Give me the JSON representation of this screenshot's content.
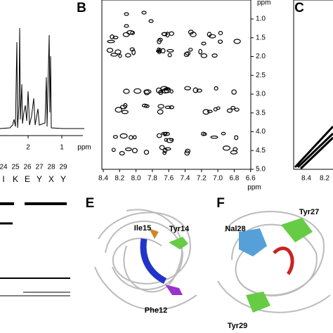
{
  "panels": {
    "A": {
      "x_ticks": [
        "2",
        "1"
      ],
      "x_unit": "ppm"
    },
    "B": {
      "label": "B",
      "y_unit": "ppm",
      "y_ticks": [
        "1.0",
        "1.5",
        "2.0",
        "2.5",
        "3.0",
        "3.5",
        "4.0",
        "4.5",
        "5.0"
      ],
      "x_ticks": [
        "8.4",
        "8.2",
        "8.0",
        "7.8",
        "7.6",
        "7.4",
        "7.2",
        "7.0",
        "6.8",
        "6.6"
      ],
      "x_unit": "ppm"
    },
    "C": {
      "label": "C",
      "x_ticks": [
        "8.4",
        "8.2"
      ]
    },
    "D": {
      "residue_numbers": [
        "24",
        "25",
        "26",
        "27",
        "28",
        "29"
      ],
      "residues": [
        "I",
        "K",
        "E",
        "Y",
        "X",
        "Y"
      ]
    },
    "E": {
      "label": "E",
      "annotations": [
        "Ile15",
        "Tyr14",
        "Phe12"
      ]
    },
    "F": {
      "label": "F",
      "annotations": [
        "Nal28",
        "Tyr27",
        "Tyr29"
      ]
    }
  }
}
